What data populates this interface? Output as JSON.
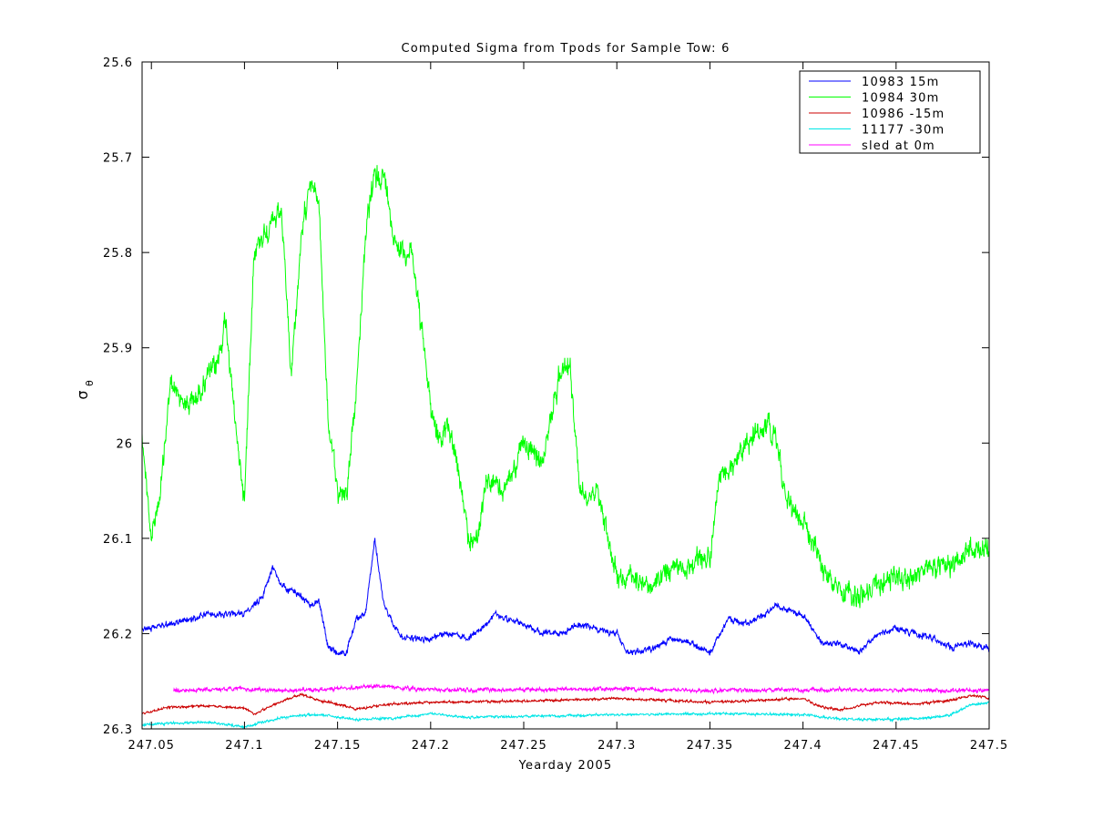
{
  "chart_data": {
    "type": "line",
    "title": "Computed Sigma from Tpods for Sample Tow: 6",
    "xlabel": "Yearday 2005",
    "ylabel_symbol": "σ",
    "ylabel_subscript": "θ",
    "xlim": [
      247.045,
      247.5
    ],
    "ylim": [
      25.6,
      26.3
    ],
    "y_reversed": true,
    "grid": false,
    "legend_position": "top-right",
    "x_ticks": [
      247.05,
      247.1,
      247.15,
      247.2,
      247.25,
      247.3,
      247.35,
      247.4,
      247.45,
      247.5
    ],
    "x_tick_labels": [
      "247.05",
      "247.1",
      "247.15",
      "247.2",
      "247.25",
      "247.3",
      "247.35",
      "247.4",
      "247.45",
      "247.5"
    ],
    "y_ticks": [
      25.6,
      25.7,
      25.8,
      25.9,
      26.0,
      26.1,
      26.2,
      26.3
    ],
    "y_tick_labels": [
      "25.6",
      "25.7",
      "25.8",
      "25.9",
      "26",
      "26.1",
      "26.2",
      "26.3"
    ],
    "series": [
      {
        "name": "10983 15m",
        "color": "#0000ff",
        "noise": 0.004,
        "x": [
          247.045,
          247.06,
          247.08,
          247.1,
          247.105,
          247.11,
          247.115,
          247.12,
          247.13,
          247.135,
          247.14,
          247.145,
          247.15,
          247.155,
          247.16,
          247.165,
          247.17,
          247.172,
          247.175,
          247.18,
          247.185,
          247.19,
          247.2,
          247.21,
          247.22,
          247.23,
          247.235,
          247.24,
          247.25,
          247.26,
          247.27,
          247.28,
          247.29,
          247.3,
          247.305,
          247.31,
          247.32,
          247.33,
          247.34,
          247.35,
          247.36,
          247.37,
          247.38,
          247.385,
          247.39,
          247.4,
          247.41,
          247.42,
          247.43,
          247.44,
          247.45,
          247.46,
          247.47,
          247.48,
          247.49,
          247.5
        ],
        "y": [
          26.195,
          26.19,
          26.18,
          26.18,
          26.17,
          26.16,
          26.13,
          26.15,
          26.16,
          26.17,
          26.165,
          26.215,
          26.22,
          26.22,
          26.185,
          26.18,
          26.1,
          26.13,
          26.17,
          26.19,
          26.205,
          26.205,
          26.205,
          26.2,
          26.205,
          26.19,
          26.18,
          26.185,
          26.19,
          26.2,
          26.2,
          26.19,
          26.195,
          26.2,
          26.22,
          26.22,
          26.215,
          26.205,
          26.21,
          26.22,
          26.185,
          26.19,
          26.18,
          26.17,
          26.175,
          26.18,
          26.21,
          26.21,
          26.22,
          26.2,
          26.195,
          26.2,
          26.205,
          26.215,
          26.21,
          26.215
        ]
      },
      {
        "name": "10984 30m",
        "color": "#00ff00",
        "noise": 0.014,
        "x": [
          247.045,
          247.05,
          247.055,
          247.06,
          247.065,
          247.07,
          247.075,
          247.08,
          247.085,
          247.09,
          247.095,
          247.1,
          247.105,
          247.11,
          247.12,
          247.125,
          247.13,
          247.135,
          247.14,
          247.145,
          247.15,
          247.155,
          247.16,
          247.165,
          247.17,
          247.175,
          247.18,
          247.185,
          247.19,
          247.2,
          247.205,
          247.21,
          247.215,
          247.22,
          247.225,
          247.23,
          247.24,
          247.25,
          247.26,
          247.27,
          247.275,
          247.28,
          247.29,
          247.3,
          247.31,
          247.32,
          247.33,
          247.34,
          247.35,
          247.355,
          247.36,
          247.37,
          247.38,
          247.385,
          247.39,
          247.395,
          247.4,
          247.41,
          247.42,
          247.43,
          247.44,
          247.45,
          247.46,
          247.47,
          247.48,
          247.49,
          247.5
        ],
        "y": [
          25.99,
          26.1,
          26.05,
          25.94,
          25.95,
          25.96,
          25.95,
          25.93,
          25.92,
          25.87,
          25.98,
          26.06,
          25.8,
          25.78,
          25.76,
          25.93,
          25.8,
          25.72,
          25.75,
          25.98,
          26.05,
          26.05,
          25.95,
          25.78,
          25.72,
          25.72,
          25.78,
          25.8,
          25.8,
          25.96,
          26.0,
          25.98,
          26.03,
          26.1,
          26.1,
          26.04,
          26.05,
          26.0,
          26.02,
          25.92,
          25.92,
          26.05,
          26.05,
          26.14,
          26.14,
          26.15,
          26.13,
          26.13,
          26.12,
          26.04,
          26.03,
          26.0,
          25.98,
          25.99,
          26.05,
          26.07,
          26.08,
          26.13,
          26.16,
          26.16,
          26.15,
          26.14,
          26.14,
          26.13,
          26.13,
          26.11,
          26.11
        ]
      },
      {
        "name": "10986 -15m",
        "color": "#cc0000",
        "noise": 0.0015,
        "x": [
          247.045,
          247.06,
          247.08,
          247.1,
          247.105,
          247.12,
          247.13,
          247.14,
          247.15,
          247.16,
          247.18,
          247.2,
          247.25,
          247.3,
          247.35,
          247.4,
          247.41,
          247.42,
          247.44,
          247.46,
          247.48,
          247.49,
          247.5
        ],
        "y": [
          26.284,
          26.277,
          26.276,
          26.278,
          26.285,
          26.271,
          26.264,
          26.27,
          26.274,
          26.279,
          26.274,
          26.272,
          26.271,
          26.268,
          26.272,
          26.268,
          26.277,
          26.28,
          26.272,
          26.274,
          26.27,
          26.265,
          26.267
        ]
      },
      {
        "name": "11177 -30m",
        "color": "#00e6e6",
        "noise": 0.0015,
        "x": [
          247.045,
          247.06,
          247.08,
          247.1,
          247.12,
          247.14,
          247.16,
          247.18,
          247.2,
          247.22,
          247.25,
          247.3,
          247.35,
          247.4,
          247.42,
          247.45,
          247.47,
          247.48,
          247.49,
          247.5
        ],
        "y": [
          26.296,
          26.294,
          26.293,
          26.298,
          26.288,
          26.285,
          26.29,
          26.289,
          26.284,
          26.288,
          26.287,
          26.285,
          26.284,
          26.285,
          26.29,
          26.29,
          26.288,
          26.285,
          26.275,
          26.272
        ]
      },
      {
        "name": "sled at 0m",
        "color": "#ff00ff",
        "noise": 0.0025,
        "x": [
          247.062,
          247.08,
          247.1,
          247.12,
          247.15,
          247.17,
          247.2,
          247.25,
          247.3,
          247.35,
          247.4,
          247.45,
          247.5
        ],
        "y": [
          26.26,
          26.259,
          26.258,
          26.26,
          26.258,
          26.255,
          26.259,
          26.259,
          26.258,
          26.26,
          26.259,
          26.259,
          26.26
        ]
      }
    ]
  }
}
